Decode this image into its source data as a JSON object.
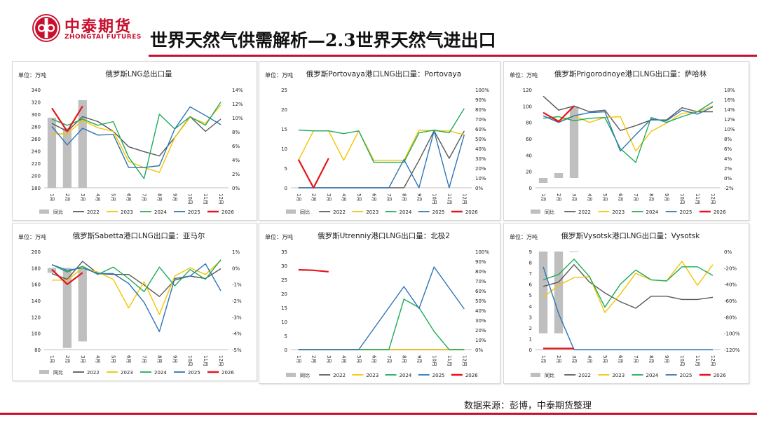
{
  "brand": {
    "name_cn": "中泰期货",
    "name_en": "ZHONGTAI FUTURES",
    "logo_icon": "zhongtai-logo-icon",
    "color": "#c8102e"
  },
  "page": {
    "title": "世界天然气供需解析—2.3世界天然气进出口",
    "source": "数据来源：彭博，中泰期货整理"
  },
  "series_colors": {
    "同比": "#bfbfbf",
    "2022": "#595959",
    "2023": "#f5c400",
    "2024": "#1fab5a",
    "2025": "#2e75b6",
    "2026": "#e3161b"
  },
  "chart_data": [
    {
      "type": "line",
      "title": "俄罗斯LNG总出口量",
      "unit": "单位：万吨",
      "months": [
        "1月",
        "2月",
        "3月",
        "4月",
        "5月",
        "6月",
        "7月",
        "8月",
        "9月",
        "10月",
        "11月",
        "12月"
      ],
      "left_axis": {
        "min": 180,
        "max": 340,
        "step": 20,
        "ticks": [
          "180",
          "200",
          "220",
          "240",
          "260",
          "280",
          "300",
          "320",
          "340"
        ]
      },
      "right_axis": {
        "min": 0,
        "max": 14,
        "step": 2,
        "ticks": [
          "0%",
          "2%",
          "4%",
          "6%",
          "8%",
          "10%",
          "12%",
          "14%"
        ]
      },
      "yoy_bars": [
        10.0,
        8.5,
        12.5
      ],
      "series": [
        {
          "name": "2022",
          "values": [
            285,
            272,
            296,
            288,
            272,
            247,
            239,
            232,
            262,
            296,
            272,
            292
          ]
        },
        {
          "name": "2023",
          "values": [
            268,
            268,
            290,
            278,
            272,
            223,
            213,
            205,
            262,
            295,
            285,
            315
          ]
        },
        {
          "name": "2024",
          "values": [
            292,
            282,
            292,
            282,
            288,
            230,
            195,
            300,
            276,
            296,
            282,
            320
          ]
        },
        {
          "name": "2025",
          "values": [
            280,
            250,
            277,
            266,
            267,
            213,
            213,
            216,
            276,
            312,
            298,
            283
          ]
        },
        {
          "name": "2026",
          "values": [
            310,
            272,
            313
          ]
        }
      ]
    },
    {
      "type": "line",
      "title": "俄罗斯Portovaya港口LNG出口量：Portovaya",
      "unit": "单位：万吨",
      "months": [
        "1月",
        "2月",
        "3月",
        "4月",
        "5月",
        "6月",
        "7月",
        "8月",
        "9月",
        "10月",
        "11月",
        "12月"
      ],
      "left_axis": {
        "min": 0,
        "max": 25,
        "step": 5,
        "ticks": [
          "0",
          "5",
          "10",
          "15",
          "20",
          "25"
        ]
      },
      "right_axis": {
        "min": 0,
        "max": 100,
        "step": 10,
        "ticks": [
          "0%",
          "10%",
          "20%",
          "30%",
          "40%",
          "50%",
          "60%",
          "70%",
          "80%",
          "90%",
          "100%"
        ]
      },
      "yoy_bars": [],
      "series": [
        {
          "name": "2022",
          "values": [
            0,
            0,
            0,
            0,
            0,
            0,
            0,
            0,
            7,
            14.5,
            7.5,
            14.5
          ]
        },
        {
          "name": "2023",
          "values": [
            7,
            14.5,
            14.5,
            7,
            14.5,
            7,
            7,
            7,
            14.7,
            14.5,
            14.5,
            13.5
          ]
        },
        {
          "name": "2024",
          "values": [
            14.7,
            14.5,
            14.5,
            13.8,
            14.5,
            6.5,
            6.5,
            6.5,
            14,
            14.7,
            14,
            20.2
          ]
        },
        {
          "name": "2025",
          "values": [
            0,
            0,
            0,
            0,
            0,
            0,
            0,
            7.2,
            0,
            14.5,
            0,
            13.5
          ]
        },
        {
          "name": "2026",
          "values": [
            7.2,
            0,
            7.5
          ]
        }
      ]
    },
    {
      "type": "line",
      "title": "俄罗斯Prigorodnoye港口LNG出口量：萨哈林",
      "unit": "单位：万吨",
      "months": [
        "1月",
        "2月",
        "3月",
        "4月",
        "5月",
        "6月",
        "7月",
        "8月",
        "9月",
        "10月",
        "11月",
        "12月"
      ],
      "left_axis": {
        "min": 0,
        "max": 120,
        "step": 20,
        "ticks": [
          "0",
          "20",
          "40",
          "60",
          "80",
          "100",
          "120"
        ]
      },
      "right_axis": {
        "min": -2,
        "max": 18,
        "step": 2,
        "ticks": [
          "-2%",
          "0%",
          "2%",
          "4%",
          "6%",
          "8%",
          "10%",
          "12%",
          "14%",
          "16%",
          "18%"
        ]
      },
      "yoy_bars": [
        -1.0,
        1.0,
        14.5
      ],
      "series": [
        {
          "name": "2022",
          "values": [
            112,
            95,
            100,
            93,
            95,
            70,
            76,
            83,
            83,
            98,
            93,
            93
          ]
        },
        {
          "name": "2023",
          "values": [
            92,
            82,
            88,
            80,
            86,
            87,
            45,
            69,
            79,
            91,
            93,
            100
          ]
        },
        {
          "name": "2024",
          "values": [
            85,
            87,
            82,
            85,
            86,
            48,
            31,
            86,
            80,
            87,
            93,
            105
          ]
        },
        {
          "name": "2025",
          "values": [
            88,
            80,
            88,
            92,
            93,
            45,
            65,
            84,
            82,
            95,
            90,
            99
          ]
        },
        {
          "name": "2026",
          "values": [
            92,
            81,
            100
          ]
        }
      ]
    },
    {
      "type": "line",
      "title": "俄罗斯Sabetta港口LNG出口量：亚马尔",
      "unit": "单位：万吨",
      "months": [
        "1月",
        "2月",
        "3月",
        "4月",
        "5月",
        "6月",
        "7月",
        "8月",
        "9月",
        "10月",
        "11月",
        "12月"
      ],
      "left_axis": {
        "min": 80,
        "max": 200,
        "step": 20,
        "ticks": [
          "80",
          "100",
          "120",
          "140",
          "160",
          "180",
          "200"
        ]
      },
      "right_axis": {
        "min": -5,
        "max": 1,
        "step": 1,
        "ticks": [
          "-5%",
          "-4%",
          "-3%",
          "-2%",
          "-1%",
          "0%",
          "1%"
        ]
      },
      "yoy_bars": [
        -0.3,
        -4.9,
        -4.5
      ],
      "series": [
        {
          "name": "2022",
          "values": [
            173,
            166,
            188,
            173,
            172,
            172,
            159,
            145,
            165,
            170,
            167,
            179
          ]
        },
        {
          "name": "2023",
          "values": [
            165,
            165,
            180,
            175,
            166,
            131,
            163,
            123,
            170,
            180,
            172,
            189
          ]
        },
        {
          "name": "2024",
          "values": [
            184,
            175,
            182,
            172,
            181,
            167,
            151,
            181,
            158,
            178,
            166,
            190
          ]
        },
        {
          "name": "2025",
          "values": [
            184,
            177,
            180,
            173,
            173,
            161,
            138,
            102,
            167,
            170,
            185,
            152
          ]
        },
        {
          "name": "2026",
          "values": [
            178,
            160,
            174
          ]
        }
      ]
    },
    {
      "type": "line",
      "title": "俄罗斯Utrenniy港口LNG出口量：北极2",
      "unit": "单位：万吨",
      "months": [
        "1月",
        "2月",
        "3月",
        "4月",
        "5月",
        "6月",
        "7月",
        "8月",
        "9月",
        "10月",
        "11月",
        "12月"
      ],
      "left_axis": {
        "min": 0,
        "max": 35,
        "step": 5,
        "ticks": [
          "0",
          "5",
          "10",
          "15",
          "20",
          "25",
          "30",
          "35"
        ]
      },
      "right_axis": {
        "min": 0,
        "max": 100,
        "step": 10,
        "ticks": [
          "0%",
          "10%",
          "20%",
          "30%",
          "40%",
          "50%",
          "60%",
          "70%",
          "80%",
          "90%",
          "100%"
        ]
      },
      "yoy_bars": [],
      "series": [
        {
          "name": "2022",
          "values": [
            0,
            0,
            0,
            0,
            0,
            0,
            0,
            0,
            0,
            0,
            0,
            0
          ]
        },
        {
          "name": "2023",
          "values": [
            0,
            0,
            0,
            0,
            0,
            0,
            0,
            0,
            0,
            0,
            0,
            0
          ]
        },
        {
          "name": "2024",
          "values": [
            0,
            0,
            0,
            0,
            0,
            0,
            0,
            18,
            15,
            6.5,
            0,
            0
          ]
        },
        {
          "name": "2025",
          "values": [
            0,
            0,
            0,
            0,
            0,
            7.5,
            15,
            22.5,
            14.7,
            29.5,
            22,
            14.5
          ]
        },
        {
          "name": "2026",
          "values": [
            28.5,
            28.3,
            27.8
          ]
        }
      ]
    },
    {
      "type": "line",
      "title": "俄罗斯Vysotsk港口LNG出口量：Vysotsk",
      "unit": "单位：万吨",
      "months": [
        "1月",
        "2月",
        "3月",
        "4月",
        "5月",
        "6月",
        "7月",
        "8月",
        "9月",
        "10月",
        "11月",
        "12月"
      ],
      "left_axis": {
        "min": 0,
        "max": 9,
        "step": 1,
        "ticks": [
          "0",
          "1",
          "2",
          "3",
          "4",
          "5",
          "6",
          "7",
          "8",
          "9"
        ]
      },
      "right_axis": {
        "min": -120,
        "max": 0,
        "step": 20,
        "ticks": [
          "-120%",
          "-100%",
          "-80%",
          "-60%",
          "-40%",
          "-20%",
          "0%"
        ]
      },
      "yoy_bars": [
        -100,
        -100,
        0
      ],
      "series": [
        {
          "name": "2022",
          "values": [
            5.8,
            6.2,
            7.8,
            6.2,
            5.2,
            4.4,
            3.8,
            4.9,
            4.9,
            4.6,
            4.6,
            4.8
          ]
        },
        {
          "name": "2023",
          "values": [
            4.8,
            5.9,
            6.6,
            6.7,
            3.4,
            5.1,
            7.0,
            6.4,
            6.3,
            8.1,
            5.9,
            7.8
          ]
        },
        {
          "name": "2024",
          "values": [
            6.4,
            6.9,
            8.3,
            6.7,
            3.9,
            6.0,
            7.3,
            6.4,
            6.3,
            7.6,
            7.6,
            6.8
          ]
        },
        {
          "name": "2025",
          "values": [
            7.6,
            3.3,
            0,
            0,
            0,
            0,
            0,
            0,
            0,
            0,
            0,
            0
          ]
        },
        {
          "name": "2026",
          "values": [
            0.1,
            0.1,
            0.1
          ]
        }
      ]
    }
  ],
  "legend": [
    "同比",
    "2022",
    "2023",
    "2024",
    "2025",
    "2026"
  ]
}
